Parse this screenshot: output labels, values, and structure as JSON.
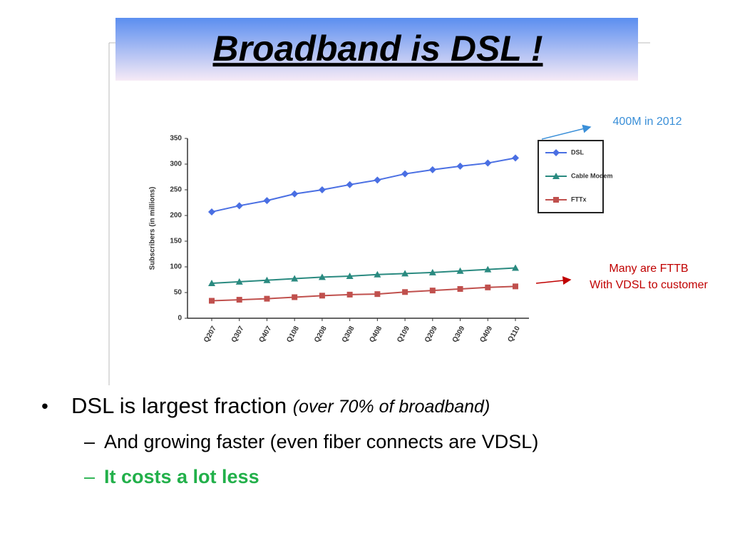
{
  "slide": {
    "title": "Broadband is DSL !",
    "annotations": [
      "400M in 2012",
      "Many are FTTB",
      "With VDSL to customer"
    ],
    "bullet": "DSL is largest fraction",
    "bullet_note": "(over 70% of broadband)",
    "sub_bullets": [
      "And growing faster (even fiber connects are VDSL)",
      "It costs a lot less"
    ]
  },
  "chart_data": {
    "type": "line",
    "y_label": "Subscribers (in millions)",
    "categories": [
      "Q207",
      "Q307",
      "Q407",
      "Q108",
      "Q208",
      "Q308",
      "Q408",
      "Q109",
      "Q209",
      "Q309",
      "Q409",
      "Q110"
    ],
    "series": [
      {
        "name": "DSL",
        "color": "#4a6fe3",
        "values": [
          207,
          219,
          229,
          242,
          250,
          260,
          269,
          281,
          289,
          296,
          302,
          312
        ]
      },
      {
        "name": "Cable Modem",
        "color": "#2a8a80",
        "values": [
          68,
          71,
          74,
          77,
          80,
          82,
          85,
          87,
          89,
          92,
          95,
          98
        ]
      },
      {
        "name": "FTTx",
        "color": "#c0504d",
        "values": [
          34,
          36,
          38,
          41,
          44,
          46,
          47,
          51,
          54,
          57,
          60,
          62
        ]
      }
    ],
    "ylim": [
      0,
      350
    ],
    "yticks": [
      0,
      50,
      100,
      150,
      200,
      250,
      300,
      350
    ],
    "grid": false,
    "legend": "right"
  }
}
